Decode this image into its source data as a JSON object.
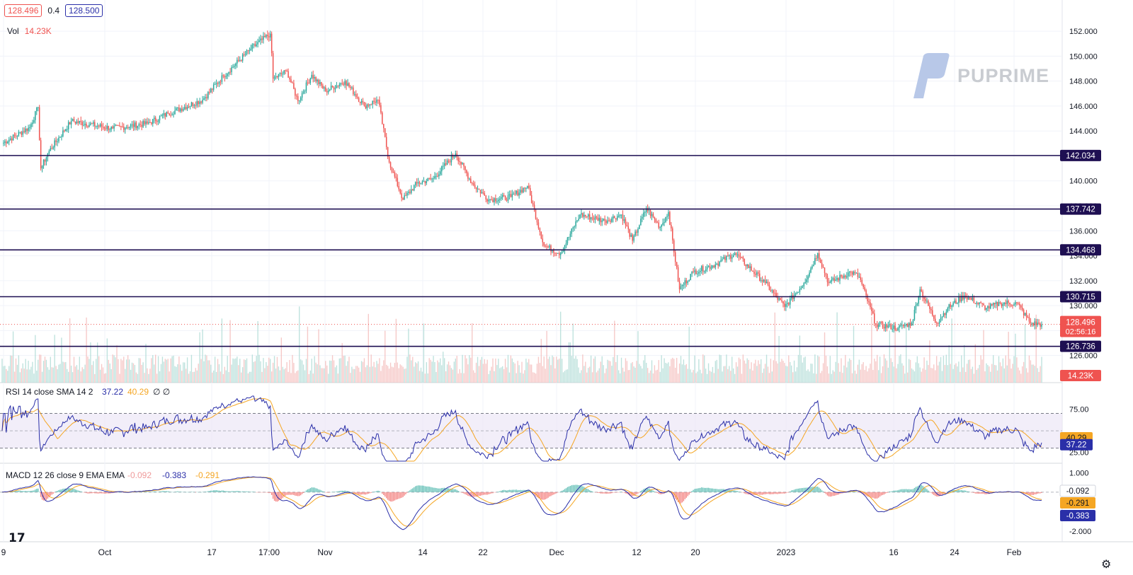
{
  "header": {
    "bid": "128.496",
    "spread": "0.4",
    "ask": "128.500",
    "vol_label": "Vol",
    "vol_value": "14.23K"
  },
  "watermark": {
    "text": "PUPRIME"
  },
  "colors": {
    "up": "#26a69a",
    "down": "#ef5350",
    "level": "#1e0f52",
    "rsi": "#2a2fa8",
    "rsi_sma": "#f5a623",
    "macd": "#2a2fa8",
    "signal": "#f5a623"
  },
  "chart_data": [
    {
      "type": "candlestick",
      "title": "",
      "y_ticks": [
        "152.000",
        "150.000",
        "148.000",
        "146.000",
        "144.000",
        "142.000",
        "140.000",
        "138.000",
        "136.000",
        "134.000",
        "132.000",
        "130.000",
        "128.000",
        "126.000"
      ],
      "ylim": [
        125.3,
        152.8
      ],
      "x_ticks": [
        "9",
        "Oct",
        "17",
        "17:00",
        "Nov",
        "14",
        "22",
        "Dec",
        "12",
        "20",
        "2023",
        "16",
        "24",
        "Feb"
      ],
      "anchors": [
        [
          0,
          143.0
        ],
        [
          20,
          144.3
        ],
        [
          26,
          145.9
        ],
        [
          28,
          141.0
        ],
        [
          34,
          142.4
        ],
        [
          50,
          144.8
        ],
        [
          80,
          144.2
        ],
        [
          105,
          144.6
        ],
        [
          120,
          145.4
        ],
        [
          145,
          146.5
        ],
        [
          160,
          148.4
        ],
        [
          180,
          150.6
        ],
        [
          194,
          151.8
        ],
        [
          196,
          148.2
        ],
        [
          206,
          148.8
        ],
        [
          214,
          146.4
        ],
        [
          224,
          148.5
        ],
        [
          234,
          147.2
        ],
        [
          248,
          148.0
        ],
        [
          262,
          146.0
        ],
        [
          272,
          146.5
        ],
        [
          280,
          141.5
        ],
        [
          290,
          138.5
        ],
        [
          300,
          139.8
        ],
        [
          312,
          140.2
        ],
        [
          328,
          142.2
        ],
        [
          340,
          139.8
        ],
        [
          352,
          138.5
        ],
        [
          368,
          138.7
        ],
        [
          380,
          139.6
        ],
        [
          392,
          134.8
        ],
        [
          404,
          134.2
        ],
        [
          418,
          137.3
        ],
        [
          436,
          136.8
        ],
        [
          448,
          137.3
        ],
        [
          456,
          135.2
        ],
        [
          466,
          137.8
        ],
        [
          476,
          136.3
        ],
        [
          482,
          137.5
        ],
        [
          490,
          131.3
        ],
        [
          500,
          132.7
        ],
        [
          516,
          133.3
        ],
        [
          530,
          134.2
        ],
        [
          552,
          131.8
        ],
        [
          566,
          129.9
        ],
        [
          580,
          131.8
        ],
        [
          590,
          134.2
        ],
        [
          598,
          131.8
        ],
        [
          614,
          132.7
        ],
        [
          620,
          132.3
        ],
        [
          632,
          128.5
        ],
        [
          648,
          128.2
        ],
        [
          658,
          128.6
        ],
        [
          664,
          131.3
        ],
        [
          676,
          128.6
        ],
        [
          684,
          129.8
        ],
        [
          696,
          130.8
        ],
        [
          712,
          129.8
        ],
        [
          722,
          130.2
        ],
        [
          734,
          130.2
        ],
        [
          744,
          128.6
        ],
        [
          752,
          128.5
        ]
      ],
      "price_levels": [
        142.034,
        137.742,
        134.468,
        130.715,
        126.736
      ],
      "level_labels": [
        "142.034",
        "137.742",
        "134.468",
        "130.715",
        "126.736"
      ],
      "last_price": "128.496",
      "countdown": "02:56:16",
      "volume_label": "14.23K"
    },
    {
      "type": "line",
      "title": "RSI 14 close SMA 14 2",
      "rsi_value": "37.22",
      "sma_value": "40.29",
      "extra": "∅ ∅",
      "y_ticks": [
        "75.00",
        "25.00"
      ],
      "bands": [
        70,
        30
      ],
      "ylim": [
        15,
        90
      ],
      "labels": [
        "40.29",
        "37.22"
      ]
    },
    {
      "type": "line",
      "title": "MACD 12 26 close 9 EMA EMA",
      "hist_value": "-0.092",
      "macd_value": "-0.383",
      "signal_value": "-0.291",
      "y_ticks": [
        "1.000",
        "-2.000"
      ],
      "ylim": [
        -2.4,
        1.3
      ],
      "labels": [
        "-0.092",
        "-0.291",
        "-0.383"
      ]
    }
  ]
}
